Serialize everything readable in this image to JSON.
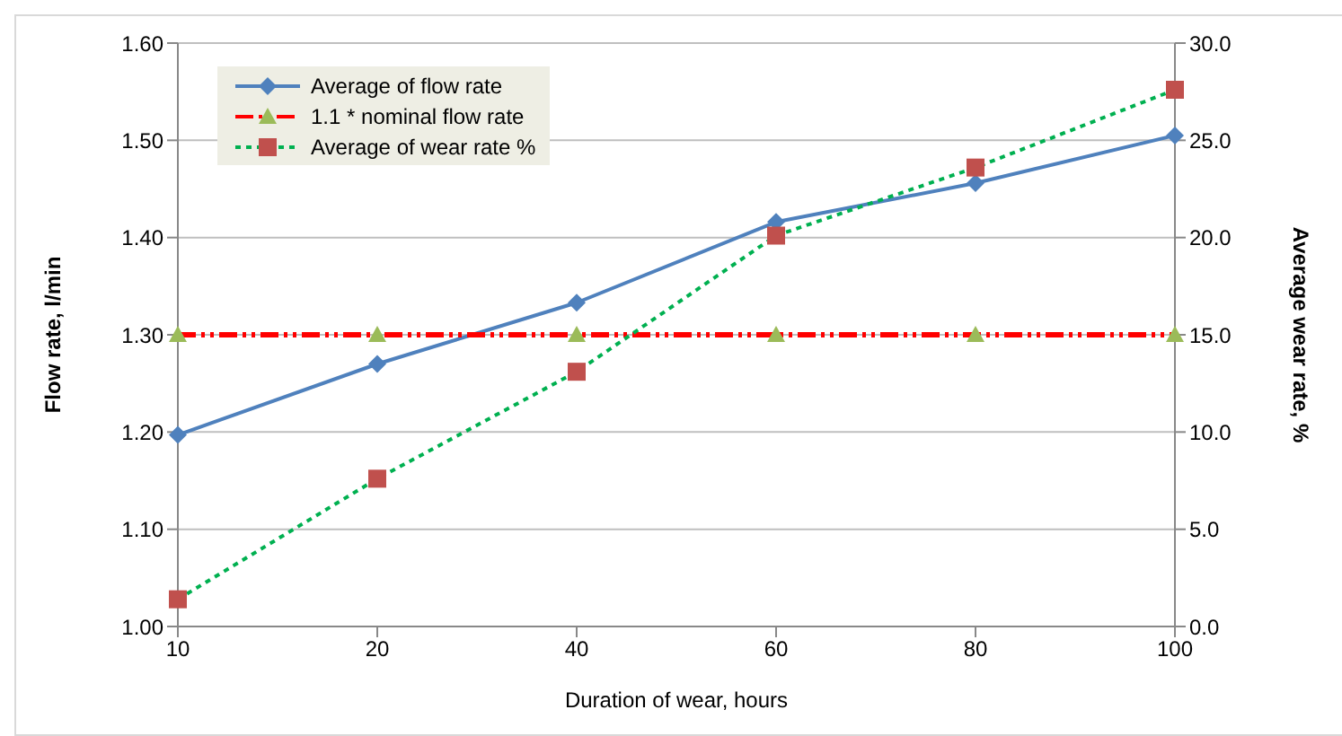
{
  "chart_data": {
    "type": "line",
    "xlabel": "Duration of wear, hours",
    "ylabel": "Flow rate, l/min",
    "y2label": "Average wear rate, %",
    "categories": [
      "10",
      "20",
      "40",
      "60",
      "80",
      "100"
    ],
    "series": [
      {
        "name": "Average of flow rate",
        "color": "#4f81bd",
        "marker": "diamond",
        "line_style": "solid",
        "values": [
          1.197,
          1.27,
          1.333,
          1.416,
          1.456,
          1.505
        ]
      },
      {
        "name": "1.1 * nominal flow rate",
        "color": "#ff0000",
        "marker": "triangle",
        "line_style": "dashed",
        "values": [
          1.3,
          1.3,
          1.3,
          1.3,
          1.3,
          1.3
        ]
      },
      {
        "name": "Average of wear rate %",
        "color": "#00b050",
        "marker": "square",
        "line_style": "dotted",
        "axis": "y2",
        "values": [
          1.4,
          7.6,
          13.1,
          20.1,
          23.6,
          27.6
        ]
      }
    ],
    "ylim": [
      1.0,
      1.6
    ],
    "yticks": [
      {
        "value": 1.0,
        "label": "1.00"
      },
      {
        "value": 1.1,
        "label": "1.10"
      },
      {
        "value": 1.2,
        "label": "1.20"
      },
      {
        "value": 1.3,
        "label": "1.30"
      },
      {
        "value": 1.4,
        "label": "1.40"
      },
      {
        "value": 1.5,
        "label": "1.50"
      },
      {
        "value": 1.6,
        "label": "1.60"
      }
    ],
    "y2lim": [
      0,
      30
    ],
    "y2ticks": [
      {
        "value": 0,
        "label": "0.0"
      },
      {
        "value": 5,
        "label": "5.0"
      },
      {
        "value": 10,
        "label": "10.0"
      },
      {
        "value": 15,
        "label": "15.0"
      },
      {
        "value": 20,
        "label": "20.0"
      },
      {
        "value": 25,
        "label": "25.0"
      },
      {
        "value": 30,
        "label": "30.0"
      }
    ],
    "grid": "y",
    "legend": "top left"
  }
}
